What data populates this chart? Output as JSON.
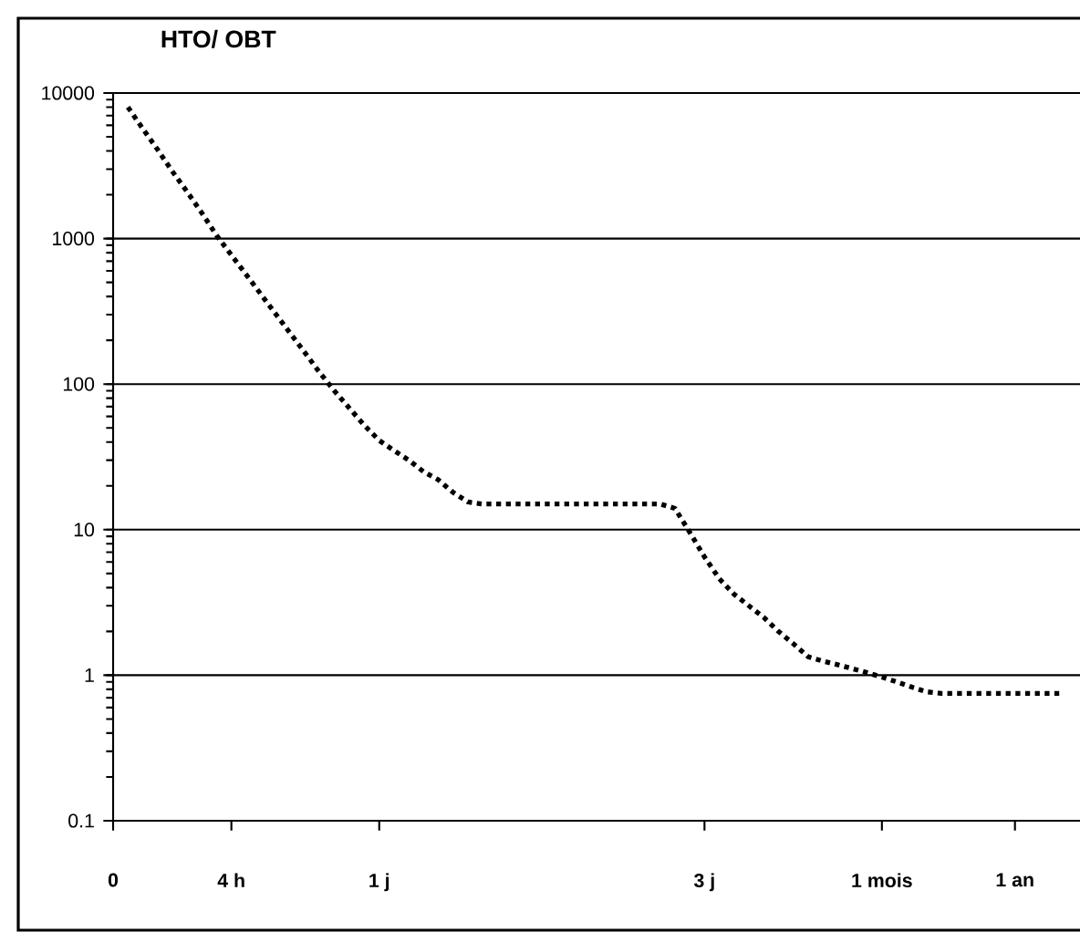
{
  "chart_data": {
    "type": "line",
    "title": "HTO/ OBT",
    "categories": [
      "0",
      null,
      null,
      null,
      null,
      null,
      null,
      null,
      "4 h",
      null,
      null,
      null,
      null,
      null,
      null,
      null,
      null,
      null,
      "1 j",
      null,
      null,
      null,
      null,
      null,
      null,
      null,
      null,
      null,
      null,
      null,
      null,
      null,
      null,
      null,
      null,
      null,
      null,
      null,
      null,
      null,
      "3 j",
      null,
      null,
      null,
      null,
      null,
      null,
      null,
      null,
      null,
      null,
      null,
      "1 mois",
      null,
      null,
      null,
      null,
      null,
      null,
      null,
      null,
      "1 an",
      null,
      null,
      null,
      null
    ],
    "series": [
      {
        "color": "#000000",
        "values": [
          null,
          8000,
          5700,
          4100,
          2900,
          2100,
          1500,
          1050,
          770,
          565,
          414,
          303,
          222,
          163,
          119,
          89,
          68,
          52,
          41,
          35,
          30,
          25,
          22,
          18,
          15.5,
          15,
          15,
          15,
          15,
          15,
          15,
          15,
          15,
          15,
          15,
          15,
          15,
          15,
          14,
          9.6,
          6.5,
          4.6,
          3.6,
          3.0,
          2.5,
          2.0,
          1.65,
          1.34,
          1.25,
          1.18,
          1.11,
          1.04,
          0.97,
          0.9,
          0.83,
          0.77,
          0.75,
          0.75,
          0.75,
          0.75,
          0.75,
          0.75,
          0.75,
          0.75,
          0.75,
          null
        ]
      }
    ],
    "ylim": [
      0.1,
      10000
    ],
    "yticks": [
      0.1,
      1,
      10,
      100,
      1000,
      10000
    ],
    "log": "y",
    "grid": "y",
    "line_style": "dotted"
  }
}
